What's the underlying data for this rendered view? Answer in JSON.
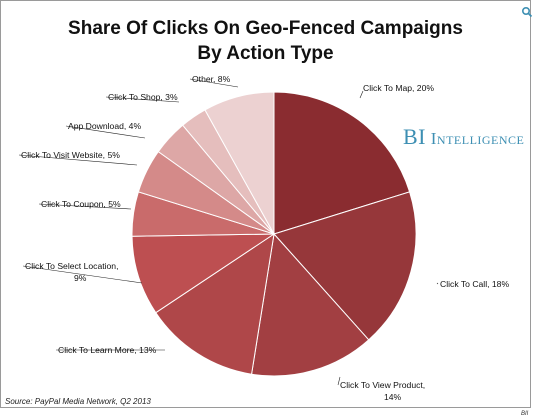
{
  "title_line1": "Share Of Clicks On Geo-Fenced Campaigns",
  "title_line2": "By Action Type",
  "brand": {
    "first": "BI",
    "second": "Intelligence",
    "color": "#3d8fb3"
  },
  "source": "Source: PayPal Media Network, Q2 2013",
  "corner_mark": "BII",
  "zoom_icon": "magnifier-icon",
  "chart_data": {
    "type": "pie",
    "title": "Share Of Clicks On Geo-Fenced Campaigns By Action Type",
    "slices": [
      {
        "label": "Click To Map",
        "value": 20,
        "text": "Click To Map, 20%",
        "color": "#8a2c30"
      },
      {
        "label": "Click To Call",
        "value": 18,
        "text": "Click To Call, 18%",
        "color": "#96373a"
      },
      {
        "label": "Click To View Product",
        "value": 14,
        "text": "Click To View Product, 14%",
        "color": "#a23f42"
      },
      {
        "label": "Click To Learn More",
        "value": 13,
        "text": "Click To Learn More, 13%",
        "color": "#af4749"
      },
      {
        "label": "Click To Select Location",
        "value": 9,
        "text": "Click To Select Location, 9%",
        "color": "#bd4f51"
      },
      {
        "label": "Click To Coupon",
        "value": 5,
        "text": "Click To Coupon, 5%",
        "color": "#c96b6b"
      },
      {
        "label": "Click To Visit Website",
        "value": 5,
        "text": "Click To Visit Website, 5%",
        "color": "#d48a89"
      },
      {
        "label": "App Download",
        "value": 4,
        "text": "App Download, 4%",
        "color": "#dda7a6"
      },
      {
        "label": "Click To Shop",
        "value": 3,
        "text": "Click To Shop, 3%",
        "color": "#e5bebd"
      },
      {
        "label": "Other",
        "value": 8,
        "text": "Other, 8%",
        "color": "#ecd1d1"
      }
    ]
  }
}
